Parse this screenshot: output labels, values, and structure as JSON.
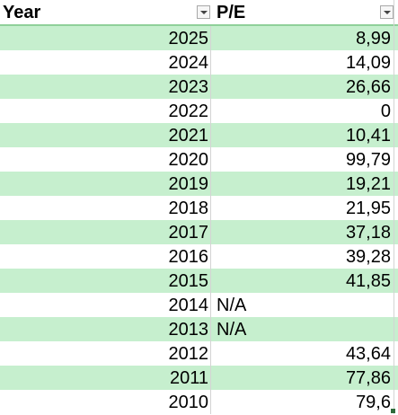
{
  "header": {
    "year_label": "Year",
    "pe_label": "P/E"
  },
  "rows": [
    {
      "year": "2025",
      "pe": "8,99",
      "text": false
    },
    {
      "year": "2024",
      "pe": "14,09",
      "text": false
    },
    {
      "year": "2023",
      "pe": "26,66",
      "text": false
    },
    {
      "year": "2022",
      "pe": "0",
      "text": false
    },
    {
      "year": "2021",
      "pe": "10,41",
      "text": false
    },
    {
      "year": "2020",
      "pe": "99,79",
      "text": false
    },
    {
      "year": "2019",
      "pe": "19,21",
      "text": false
    },
    {
      "year": "2018",
      "pe": "21,95",
      "text": false
    },
    {
      "year": "2017",
      "pe": "37,18",
      "text": false
    },
    {
      "year": "2016",
      "pe": "39,28",
      "text": false
    },
    {
      "year": "2015",
      "pe": "41,85",
      "text": false
    },
    {
      "year": "2014",
      "pe": "N/A",
      "text": true
    },
    {
      "year": "2013",
      "pe": "N/A",
      "text": true
    },
    {
      "year": "2012",
      "pe": "43,64",
      "text": false
    },
    {
      "year": "2011",
      "pe": "77,86",
      "text": false
    },
    {
      "year": "2010",
      "pe": "79,6",
      "text": false
    }
  ],
  "colors": {
    "band": "#c6efce",
    "header_border": "#8fd09a"
  },
  "icons": {
    "filter": "filter-dropdown-icon"
  }
}
